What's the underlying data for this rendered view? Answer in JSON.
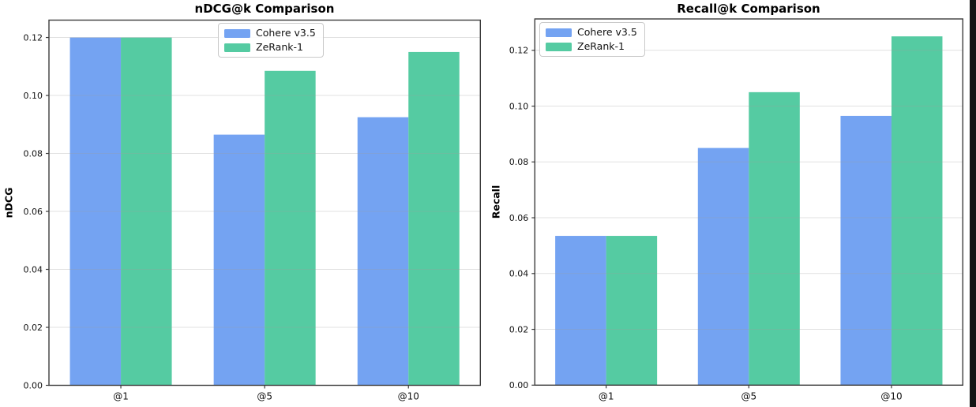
{
  "page": {
    "background_color": "#ffffff",
    "edge_strip_color": "#141414"
  },
  "style_colors": {
    "series_blue": "#74a3f2",
    "series_green": "#55cba2",
    "gridline": "#9e9e9e",
    "spine": "#3c3c3c",
    "tick_text": "#111111"
  },
  "chart_data": [
    {
      "type": "bar",
      "title": "nDCG@k Comparison",
      "xlabel": "",
      "ylabel": "nDCG",
      "categories": [
        "@1",
        "@5",
        "@10"
      ],
      "series": [
        {
          "name": "Cohere v3.5",
          "color": "#74a3f2",
          "values": [
            0.12,
            0.0865,
            0.0925
          ]
        },
        {
          "name": "ZeRank-1",
          "color": "#55cba2",
          "values": [
            0.12,
            0.1085,
            0.115
          ]
        }
      ],
      "ylim": [
        0,
        0.126
      ],
      "yticks": [
        0,
        0.02,
        0.04,
        0.06,
        0.08,
        0.1,
        0.12
      ],
      "grid": "horizontal",
      "legend_loc": "upper center"
    },
    {
      "type": "bar",
      "title": "Recall@k Comparison",
      "xlabel": "",
      "ylabel": "Recall",
      "categories": [
        "@1",
        "@5",
        "@10"
      ],
      "series": [
        {
          "name": "Cohere v3.5",
          "color": "#74a3f2",
          "values": [
            0.0535,
            0.085,
            0.0965
          ]
        },
        {
          "name": "ZeRank-1",
          "color": "#55cba2",
          "values": [
            0.0535,
            0.105,
            0.125
          ]
        }
      ],
      "ylim": [
        0,
        0.13125
      ],
      "yticks": [
        0,
        0.02,
        0.04,
        0.06,
        0.08,
        0.1,
        0.12
      ],
      "grid": "horizontal",
      "legend_loc": "upper left"
    }
  ]
}
